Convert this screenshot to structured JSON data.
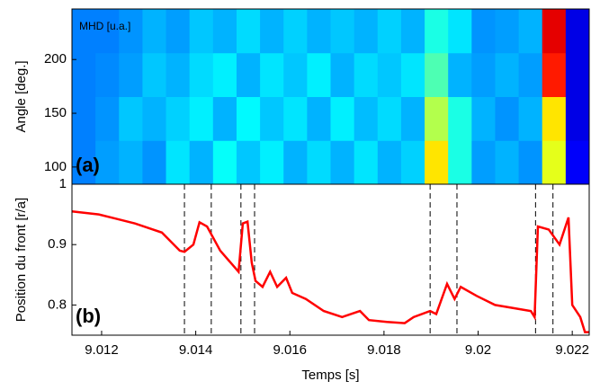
{
  "chart_data": [
    {
      "type": "heatmap",
      "ylabel": "Angle [deg.]",
      "annotations": [
        "MHD [u.a.]",
        "(a)"
      ],
      "colormap": "jet",
      "xlim": [
        9.01137,
        9.02236
      ],
      "ylim": [
        84,
        247
      ],
      "yticks": [
        100,
        150,
        200
      ],
      "z": [
        [
          0.25,
          0.28,
          0.3,
          0.27,
          0.35,
          0.3,
          0.38,
          0.32,
          0.36,
          0.3,
          0.34,
          0.3,
          0.35,
          0.3,
          0.33,
          0.65,
          0.4,
          0.28,
          0.3,
          0.27,
          0.6,
          0.12
        ],
        [
          0.25,
          0.27,
          0.32,
          0.3,
          0.33,
          0.36,
          0.3,
          0.37,
          0.32,
          0.35,
          0.3,
          0.36,
          0.31,
          0.34,
          0.3,
          0.55,
          0.4,
          0.3,
          0.27,
          0.3,
          0.65,
          0.1
        ],
        [
          0.25,
          0.26,
          0.28,
          0.32,
          0.3,
          0.34,
          0.36,
          0.3,
          0.35,
          0.32,
          0.36,
          0.3,
          0.34,
          0.32,
          0.35,
          0.45,
          0.3,
          0.28,
          0.3,
          0.28,
          0.85,
          0.1
        ],
        [
          0.25,
          0.25,
          0.27,
          0.3,
          0.28,
          0.32,
          0.3,
          0.34,
          0.3,
          0.33,
          0.3,
          0.32,
          0.3,
          0.33,
          0.3,
          0.4,
          0.35,
          0.27,
          0.28,
          0.3,
          0.9,
          0.1
        ]
      ]
    },
    {
      "type": "line",
      "ylabel": "Position du front [r/a]",
      "xlabel": "Temps [s]",
      "annotations": [
        "(b)"
      ],
      "color": "#ff0000",
      "xlim": [
        9.01137,
        9.02236
      ],
      "ylim": [
        0.75,
        1.0
      ],
      "xticks": [
        9.012,
        9.014,
        9.016,
        9.018,
        9.02,
        9.022
      ],
      "yticks": [
        0.8,
        0.9,
        1
      ],
      "vlines": [
        9.01376,
        9.01433,
        9.01496,
        9.01525,
        9.01898,
        9.01955,
        9.02122,
        9.02159
      ],
      "x": [
        9.01137,
        9.01194,
        9.01271,
        9.01328,
        9.01366,
        9.01376,
        9.01395,
        9.01408,
        9.01424,
        9.01452,
        9.01491,
        9.015,
        9.0151,
        9.01519,
        9.01527,
        9.01542,
        9.01558,
        9.01573,
        9.01592,
        9.01605,
        9.01634,
        9.01672,
        9.01711,
        9.01749,
        9.01768,
        9.01806,
        9.01844,
        9.01863,
        9.01898,
        9.01911,
        9.01934,
        9.0195,
        9.01963,
        9.01997,
        9.02036,
        9.02074,
        9.02112,
        9.0212,
        9.02127,
        9.0215,
        9.02173,
        9.02192,
        9.022,
        9.02217,
        9.02227,
        9.02236
      ],
      "values": [
        0.955,
        0.95,
        0.935,
        0.92,
        0.89,
        0.888,
        0.9,
        0.937,
        0.93,
        0.89,
        0.855,
        0.935,
        0.938,
        0.87,
        0.84,
        0.83,
        0.855,
        0.83,
        0.845,
        0.82,
        0.81,
        0.79,
        0.78,
        0.79,
        0.775,
        0.772,
        0.77,
        0.78,
        0.79,
        0.785,
        0.835,
        0.81,
        0.83,
        0.815,
        0.8,
        0.795,
        0.79,
        0.78,
        0.93,
        0.925,
        0.9,
        0.945,
        0.8,
        0.78,
        0.755,
        0.755
      ]
    }
  ]
}
